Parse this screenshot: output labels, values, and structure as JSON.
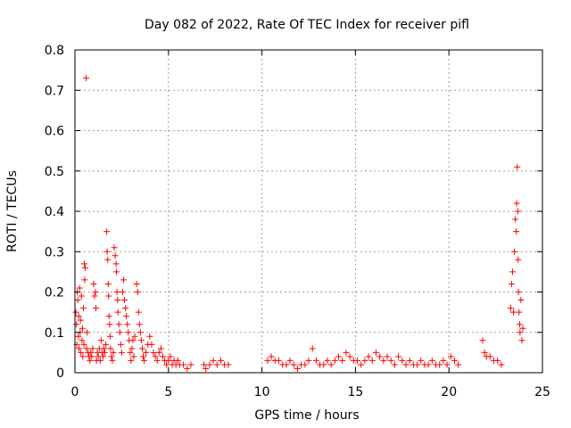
{
  "chart_data": {
    "type": "scatter",
    "title": "Day 082 of 2022, Rate Of TEC Index for receiver pifl",
    "xlabel": "GPS time / hours",
    "ylabel": "ROTI / TECUs",
    "xlim": [
      0,
      25
    ],
    "ylim": [
      0,
      0.8
    ],
    "xticks": [
      0,
      5,
      10,
      15,
      20,
      25
    ],
    "yticks": [
      0,
      0.1,
      0.2,
      0.3,
      0.4,
      0.5,
      0.6,
      0.7,
      0.8
    ],
    "xtick_labels": [
      "0",
      "5",
      "10",
      "15",
      "20",
      "25"
    ],
    "ytick_labels": [
      "0",
      "0.1",
      "0.2",
      "0.3",
      "0.4",
      "0.5",
      "0.6",
      "0.7",
      "0.8"
    ],
    "grid": true,
    "marker": "+",
    "color": "#ff0000",
    "points": [
      [
        0.05,
        0.15
      ],
      [
        0.08,
        0.12
      ],
      [
        0.1,
        0.07
      ],
      [
        0.12,
        0.2
      ],
      [
        0.15,
        0.18
      ],
      [
        0.18,
        0.09
      ],
      [
        0.2,
        0.14
      ],
      [
        0.22,
        0.06
      ],
      [
        0.25,
        0.21
      ],
      [
        0.28,
        0.1
      ],
      [
        0.3,
        0.13
      ],
      [
        0.32,
        0.05
      ],
      [
        0.35,
        0.19
      ],
      [
        0.38,
        0.08
      ],
      [
        0.4,
        0.11
      ],
      [
        0.42,
        0.04
      ],
      [
        0.45,
        0.16
      ],
      [
        0.48,
        0.07
      ],
      [
        0.5,
        0.27
      ],
      [
        0.52,
        0.23
      ],
      [
        0.55,
        0.26
      ],
      [
        0.6,
        0.73
      ],
      [
        0.62,
        0.06
      ],
      [
        0.65,
        0.1
      ],
      [
        0.7,
        0.05
      ],
      [
        0.75,
        0.04
      ],
      [
        0.8,
        0.03
      ],
      [
        0.85,
        0.05
      ],
      [
        0.9,
        0.04
      ],
      [
        0.95,
        0.06
      ],
      [
        1.0,
        0.22
      ],
      [
        1.05,
        0.19
      ],
      [
        1.1,
        0.2
      ],
      [
        1.12,
        0.16
      ],
      [
        1.15,
        0.03
      ],
      [
        1.2,
        0.05
      ],
      [
        1.25,
        0.04
      ],
      [
        1.3,
        0.06
      ],
      [
        1.35,
        0.03
      ],
      [
        1.4,
        0.08
      ],
      [
        1.45,
        0.05
      ],
      [
        1.5,
        0.04
      ],
      [
        1.55,
        0.06
      ],
      [
        1.6,
        0.05
      ],
      [
        1.65,
        0.07
      ],
      [
        1.7,
        0.35
      ],
      [
        1.72,
        0.3
      ],
      [
        1.75,
        0.28
      ],
      [
        1.78,
        0.22
      ],
      [
        1.8,
        0.19
      ],
      [
        1.82,
        0.14
      ],
      [
        1.85,
        0.12
      ],
      [
        1.88,
        0.09
      ],
      [
        1.9,
        0.06
      ],
      [
        1.95,
        0.04
      ],
      [
        2.0,
        0.03
      ],
      [
        2.05,
        0.05
      ],
      [
        2.1,
        0.31
      ],
      [
        2.15,
        0.29
      ],
      [
        2.2,
        0.27
      ],
      [
        2.22,
        0.25
      ],
      [
        2.25,
        0.2
      ],
      [
        2.28,
        0.18
      ],
      [
        2.3,
        0.15
      ],
      [
        2.35,
        0.12
      ],
      [
        2.4,
        0.1
      ],
      [
        2.45,
        0.07
      ],
      [
        2.5,
        0.05
      ],
      [
        2.55,
        0.2
      ],
      [
        2.6,
        0.23
      ],
      [
        2.65,
        0.18
      ],
      [
        2.7,
        0.16
      ],
      [
        2.75,
        0.14
      ],
      [
        2.8,
        0.12
      ],
      [
        2.85,
        0.1
      ],
      [
        2.9,
        0.08
      ],
      [
        2.95,
        0.05
      ],
      [
        3.0,
        0.03
      ],
      [
        3.05,
        0.06
      ],
      [
        3.1,
        0.08
      ],
      [
        3.15,
        0.04
      ],
      [
        3.2,
        0.09
      ],
      [
        3.3,
        0.22
      ],
      [
        3.35,
        0.2
      ],
      [
        3.4,
        0.15
      ],
      [
        3.45,
        0.12
      ],
      [
        3.5,
        0.1
      ],
      [
        3.55,
        0.08
      ],
      [
        3.6,
        0.06
      ],
      [
        3.65,
        0.04
      ],
      [
        3.7,
        0.03
      ],
      [
        3.8,
        0.05
      ],
      [
        3.9,
        0.07
      ],
      [
        4.0,
        0.09
      ],
      [
        4.1,
        0.07
      ],
      [
        4.2,
        0.05
      ],
      [
        4.3,
        0.04
      ],
      [
        4.4,
        0.03
      ],
      [
        4.5,
        0.05
      ],
      [
        4.6,
        0.06
      ],
      [
        4.7,
        0.04
      ],
      [
        4.8,
        0.03
      ],
      [
        4.9,
        0.02
      ],
      [
        5.0,
        0.03
      ],
      [
        5.1,
        0.04
      ],
      [
        5.2,
        0.02
      ],
      [
        5.3,
        0.03
      ],
      [
        5.4,
        0.02
      ],
      [
        5.5,
        0.03
      ],
      [
        5.6,
        0.02
      ],
      [
        5.8,
        0.02
      ],
      [
        6.0,
        0.01
      ],
      [
        6.2,
        0.02
      ],
      [
        6.9,
        0.02
      ],
      [
        7.0,
        0.01
      ],
      [
        7.2,
        0.02
      ],
      [
        7.4,
        0.03
      ],
      [
        7.6,
        0.02
      ],
      [
        7.8,
        0.03
      ],
      [
        8.0,
        0.02
      ],
      [
        8.2,
        0.02
      ],
      [
        10.3,
        0.03
      ],
      [
        10.5,
        0.04
      ],
      [
        10.7,
        0.03
      ],
      [
        10.9,
        0.03
      ],
      [
        11.1,
        0.02
      ],
      [
        11.3,
        0.02
      ],
      [
        11.5,
        0.03
      ],
      [
        11.7,
        0.02
      ],
      [
        11.9,
        0.01
      ],
      [
        12.1,
        0.02
      ],
      [
        12.3,
        0.02
      ],
      [
        12.5,
        0.03
      ],
      [
        12.7,
        0.06
      ],
      [
        12.9,
        0.03
      ],
      [
        13.1,
        0.02
      ],
      [
        13.3,
        0.02
      ],
      [
        13.5,
        0.03
      ],
      [
        13.7,
        0.02
      ],
      [
        13.9,
        0.03
      ],
      [
        14.1,
        0.04
      ],
      [
        14.3,
        0.03
      ],
      [
        14.5,
        0.05
      ],
      [
        14.7,
        0.04
      ],
      [
        14.9,
        0.03
      ],
      [
        15.1,
        0.03
      ],
      [
        15.3,
        0.02
      ],
      [
        15.5,
        0.03
      ],
      [
        15.7,
        0.04
      ],
      [
        15.9,
        0.03
      ],
      [
        16.1,
        0.05
      ],
      [
        16.3,
        0.04
      ],
      [
        16.5,
        0.03
      ],
      [
        16.7,
        0.04
      ],
      [
        16.9,
        0.03
      ],
      [
        17.1,
        0.02
      ],
      [
        17.3,
        0.04
      ],
      [
        17.5,
        0.03
      ],
      [
        17.7,
        0.02
      ],
      [
        17.9,
        0.03
      ],
      [
        18.1,
        0.02
      ],
      [
        18.3,
        0.02
      ],
      [
        18.5,
        0.03
      ],
      [
        18.7,
        0.02
      ],
      [
        18.9,
        0.02
      ],
      [
        19.1,
        0.03
      ],
      [
        19.3,
        0.02
      ],
      [
        19.5,
        0.02
      ],
      [
        19.7,
        0.03
      ],
      [
        19.9,
        0.02
      ],
      [
        20.1,
        0.04
      ],
      [
        20.3,
        0.03
      ],
      [
        20.5,
        0.02
      ],
      [
        21.8,
        0.08
      ],
      [
        21.9,
        0.05
      ],
      [
        22.0,
        0.04
      ],
      [
        22.2,
        0.04
      ],
      [
        22.4,
        0.03
      ],
      [
        22.6,
        0.03
      ],
      [
        22.8,
        0.02
      ],
      [
        23.3,
        0.16
      ],
      [
        23.35,
        0.22
      ],
      [
        23.4,
        0.25
      ],
      [
        23.45,
        0.15
      ],
      [
        23.5,
        0.3
      ],
      [
        23.55,
        0.38
      ],
      [
        23.6,
        0.35
      ],
      [
        23.62,
        0.42
      ],
      [
        23.65,
        0.51
      ],
      [
        23.68,
        0.4
      ],
      [
        23.7,
        0.28
      ],
      [
        23.72,
        0.2
      ],
      [
        23.75,
        0.15
      ],
      [
        23.78,
        0.12
      ],
      [
        23.8,
        0.1
      ],
      [
        23.85,
        0.18
      ],
      [
        23.9,
        0.08
      ],
      [
        23.95,
        0.11
      ]
    ]
  }
}
